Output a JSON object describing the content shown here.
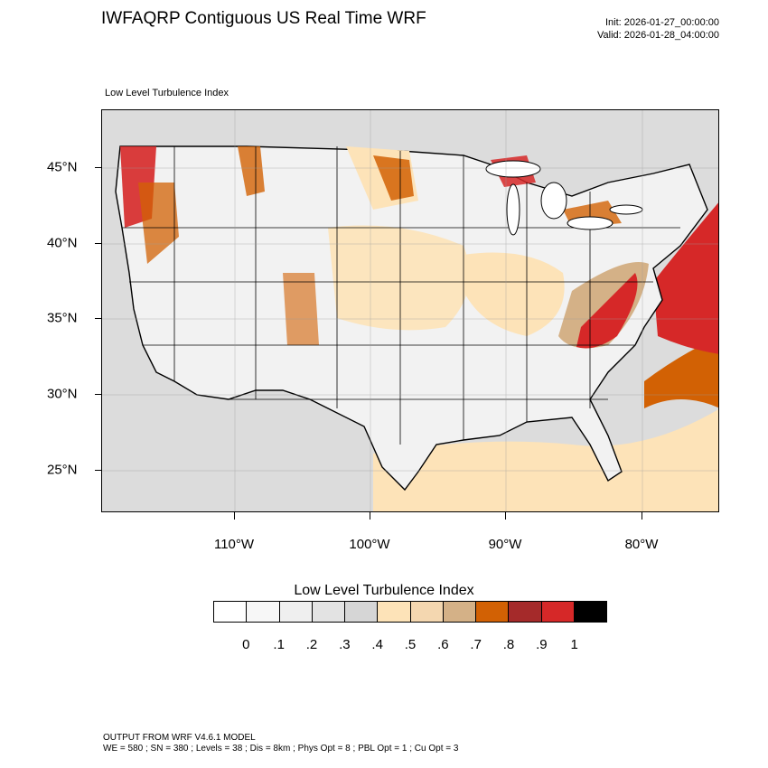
{
  "header": {
    "title": "IWFAQRP Contiguous US Real Time WRF",
    "init": "Init: 2026-01-27_00:00:00",
    "valid": "Valid: 2026-01-28_04:00:00"
  },
  "plot": {
    "subtitle": "Low Level Turbulence Index",
    "lon_labels": [
      "110°W",
      "100°W",
      "90°W",
      "80°W"
    ],
    "lat_labels": [
      "45°N",
      "40°N",
      "35°N",
      "30°N",
      "25°N"
    ]
  },
  "colorbar": {
    "title": "Low Level Turbulence Index",
    "colors": [
      "#ffffff",
      "#f7f7f7",
      "#efefef",
      "#e3e3e3",
      "#d6d6d6",
      "#fde3b8",
      "#f4d7b0",
      "#d4b187",
      "#d26104",
      "#a52a2a",
      "#d62828",
      "#000000"
    ],
    "labels": [
      "0",
      ".1",
      ".2",
      ".3",
      ".4",
      ".5",
      ".6",
      ".7",
      ".8",
      ".9",
      "1"
    ]
  },
  "footer": {
    "line1": "OUTPUT FROM WRF V4.6.1 MODEL",
    "line2": "WE = 580 ; SN = 380 ; Levels = 38 ; Dis = 8km ; Phys Opt = 8 ; PBL Opt = 1 ; Cu Opt = 3"
  }
}
